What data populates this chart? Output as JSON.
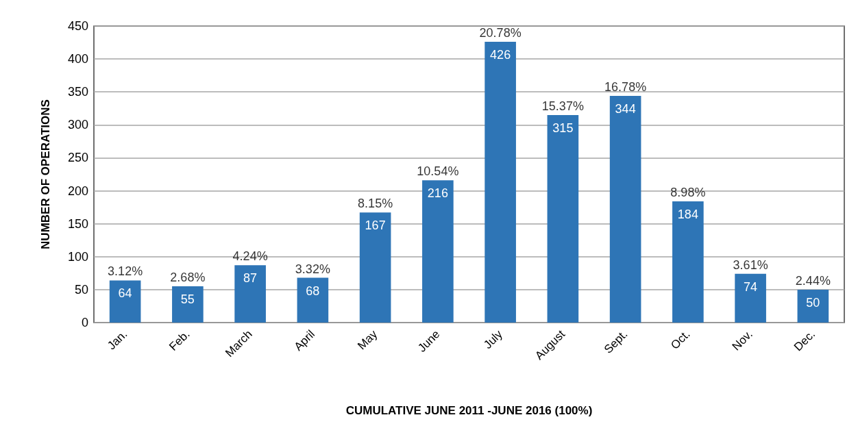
{
  "chart_data": {
    "type": "bar",
    "xlabel": "CUMULATIVE JUNE 2011 -JUNE 2016 (100%)",
    "ylabel": "NUMBER OF OPERATIONS",
    "categories": [
      "Jan.",
      "Feb.",
      "March",
      "April",
      "May",
      "June",
      "July",
      "August",
      "Sept.",
      "Oct.",
      "Nov.",
      "Dec."
    ],
    "values": [
      64,
      55,
      87,
      68,
      167,
      216,
      426,
      315,
      344,
      184,
      74,
      50
    ],
    "annotations": [
      {
        "text": "3.12%",
        "x": "Jan.",
        "y": 64
      },
      {
        "text": "2.68%",
        "x": "Feb.",
        "y": 55
      },
      {
        "text": "4.24%",
        "x": "March",
        "y": 87
      },
      {
        "text": "3.32%",
        "x": "April",
        "y": 68
      },
      {
        "text": "8.15%",
        "x": "May",
        "y": 167
      },
      {
        "text": "10.54%",
        "x": "June",
        "y": 216
      },
      {
        "text": "20.78%",
        "x": "July",
        "y": 426
      },
      {
        "text": "15.37%",
        "x": "August",
        "y": 315
      },
      {
        "text": "16.78%",
        "x": "Sept.",
        "y": 344
      },
      {
        "text": "8.98%",
        "x": "Oct.",
        "y": 184
      },
      {
        "text": "3.61%",
        "x": "Nov.",
        "y": 74
      },
      {
        "text": "2.44%",
        "x": "Dec.",
        "y": 50
      }
    ],
    "data_labels": true,
    "color": "#2e75b6",
    "ylim": [
      0,
      450
    ],
    "yticks": [
      0,
      50,
      100,
      150,
      200,
      250,
      300,
      350,
      400,
      450
    ],
    "grid": "y"
  }
}
